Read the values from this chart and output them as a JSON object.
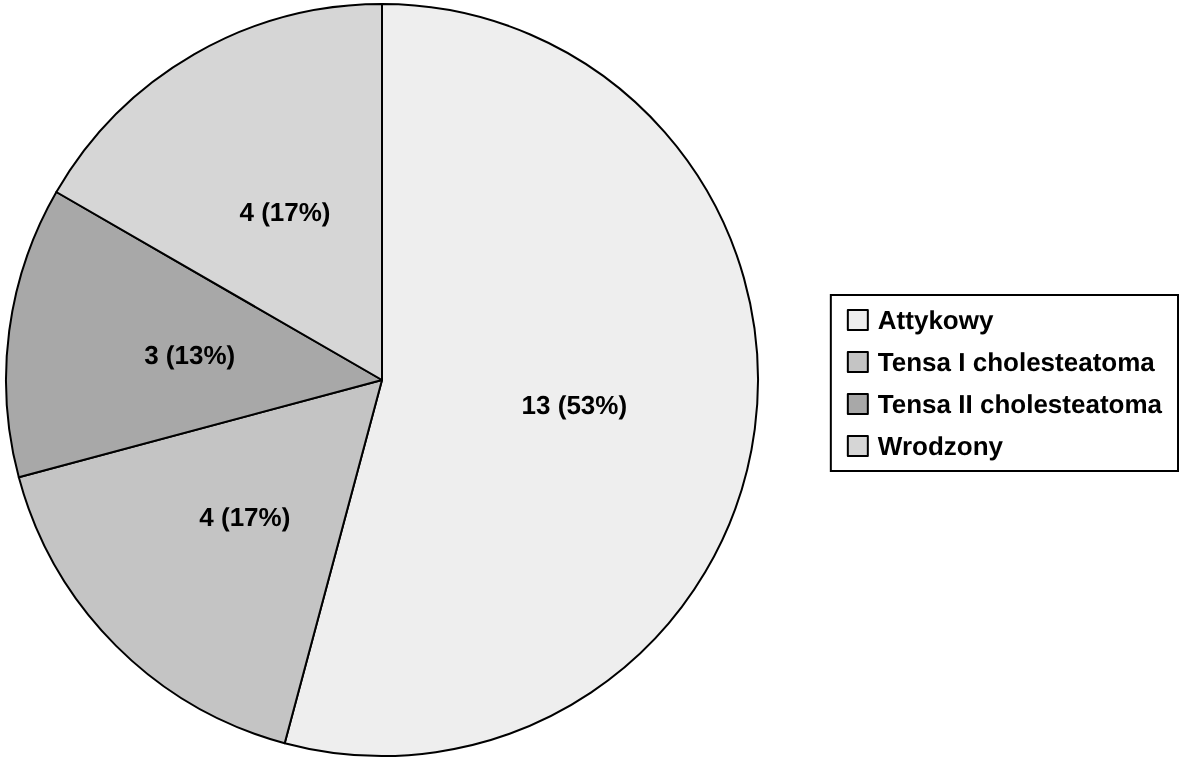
{
  "chart_data": {
    "type": "pie",
    "categories": [
      "Attykowy",
      "Tensa I cholesteatoma",
      "Tensa II cholesteatoma",
      "Wrodzony"
    ],
    "values": [
      13,
      4,
      3,
      4
    ],
    "value_labels": [
      "13 (53%)",
      "4 (17%)",
      "3 (13%)",
      "4 (17%)"
    ],
    "colors": [
      "#eeeeee",
      "#c4c4c4",
      "#a8a8a8",
      "#d6d6d6"
    ],
    "legend": "right"
  }
}
